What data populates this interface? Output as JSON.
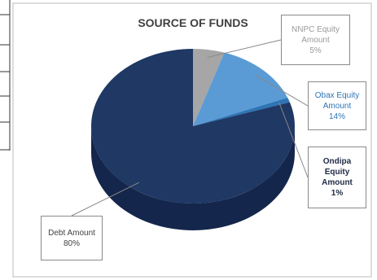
{
  "chart_data": {
    "type": "pie",
    "title": "SOURCE OF FUNDS",
    "categories": [
      "NNPC Equity Amount",
      "Obax Equity Amount",
      "Ondipa Equity Amount",
      "Debt Amount"
    ],
    "values": [
      5,
      14,
      1,
      80
    ],
    "value_labels": [
      "5%",
      "14%",
      "1%",
      "80%"
    ],
    "colors": [
      "#a6a6a6",
      "#5b9bd5",
      "#2e75b6",
      "#1f3864"
    ]
  }
}
